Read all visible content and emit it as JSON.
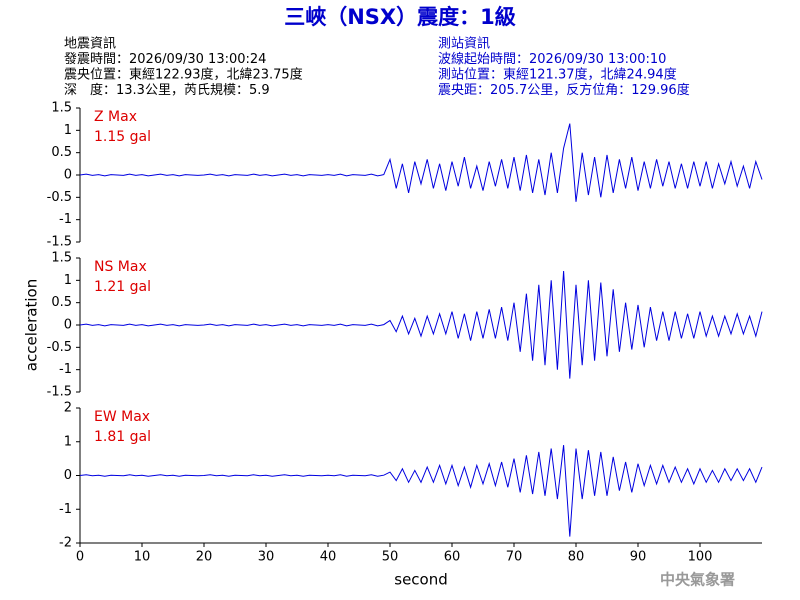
{
  "header": {
    "title": "三峽（NSX）震度：1級",
    "info_left": [
      "地震資訊",
      "發震時間：2026/09/30 13:00:24",
      "震央位置：東經122.93度，北緯23.75度",
      "深　度：13.3公里，芮氏規模：5.9"
    ],
    "info_right": [
      "測站資訊",
      "波線起始時間：2026/09/30 13:00:10",
      "測站位置：東經121.37度，北緯24.94度",
      "震央距：205.7公里，反方位角：129.96度"
    ],
    "footer": "中央氣象署"
  },
  "chart_data": [
    {
      "type": "line",
      "annotation": "Z Max",
      "max_label": "1.15 gal",
      "color": "#0000e0",
      "xlim": [
        0,
        110
      ],
      "ylim": [
        -1.5,
        1.5
      ],
      "yticks": [
        -1.5,
        -1,
        -0.5,
        0,
        0.5,
        1,
        1.5
      ],
      "x": [
        0,
        1,
        2,
        3,
        4,
        5,
        6,
        7,
        8,
        9,
        10,
        11,
        12,
        13,
        14,
        15,
        16,
        17,
        18,
        19,
        20,
        21,
        22,
        23,
        24,
        25,
        26,
        27,
        28,
        29,
        30,
        31,
        32,
        33,
        34,
        35,
        36,
        37,
        38,
        39,
        40,
        41,
        42,
        43,
        44,
        45,
        46,
        47,
        48,
        49,
        50,
        51,
        52,
        53,
        54,
        55,
        56,
        57,
        58,
        59,
        60,
        61,
        62,
        63,
        64,
        65,
        66,
        67,
        68,
        69,
        70,
        71,
        72,
        73,
        74,
        75,
        76,
        77,
        78,
        79,
        80,
        81,
        82,
        83,
        84,
        85,
        86,
        87,
        88,
        89,
        90,
        91,
        92,
        93,
        94,
        95,
        96,
        97,
        98,
        99,
        100,
        101,
        102,
        103,
        104,
        105,
        106,
        107,
        108,
        109,
        110
      ],
      "values": [
        0,
        0.02,
        -0.01,
        0.01,
        -0.02,
        0.01,
        0,
        -0.01,
        0.02,
        -0.01,
        0.01,
        -0.02,
        0,
        0.02,
        -0.01,
        0.01,
        -0.02,
        0.01,
        0,
        -0.01,
        0,
        0.02,
        -0.01,
        0.01,
        -0.02,
        0.01,
        0,
        -0.01,
        0.02,
        -0.01,
        0.01,
        -0.02,
        0,
        0.02,
        -0.01,
        0.01,
        -0.02,
        0.01,
        0,
        -0.01,
        0.01,
        -0.01,
        0.02,
        -0.02,
        0.01,
        0,
        -0.01,
        0.02,
        -0.02,
        0.01,
        0.35,
        -0.3,
        0.25,
        -0.4,
        0.3,
        -0.2,
        0.35,
        -0.3,
        0.25,
        -0.35,
        0.3,
        -0.25,
        0.4,
        -0.3,
        0.2,
        -0.35,
        0.3,
        -0.25,
        0.35,
        -0.3,
        0.4,
        -0.35,
        0.45,
        -0.4,
        0.35,
        -0.45,
        0.5,
        -0.4,
        0.6,
        1.15,
        -0.6,
        0.5,
        -0.45,
        0.4,
        -0.5,
        0.45,
        -0.4,
        0.35,
        -0.3,
        0.4,
        -0.35,
        0.3,
        -0.3,
        0.35,
        -0.25,
        0.3,
        -0.3,
        0.25,
        -0.3,
        0.3,
        -0.25,
        0.3,
        -0.3,
        0.25,
        -0.2,
        0.3,
        -0.25,
        0.2,
        -0.3,
        0.3,
        -0.1
      ]
    },
    {
      "type": "line",
      "annotation": "NS Max",
      "max_label": "1.21 gal",
      "ylabel": "acceleration",
      "color": "#0000e0",
      "xlim": [
        0,
        110
      ],
      "ylim": [
        -1.5,
        1.5
      ],
      "yticks": [
        -1.5,
        -1,
        -0.5,
        0,
        0.5,
        1,
        1.5
      ],
      "values": [
        0,
        0.02,
        -0.01,
        0.01,
        -0.02,
        0.01,
        0,
        -0.01,
        0.02,
        -0.01,
        0.01,
        -0.02,
        0,
        0.02,
        -0.01,
        0.01,
        -0.02,
        0.01,
        0,
        -0.01,
        0,
        0.02,
        -0.01,
        0.01,
        -0.02,
        0.01,
        0,
        -0.01,
        0.02,
        -0.01,
        0.01,
        -0.02,
        0,
        0.02,
        -0.01,
        0.01,
        -0.02,
        0.01,
        0,
        -0.01,
        0.01,
        -0.01,
        0.02,
        -0.02,
        0.01,
        0,
        -0.01,
        0.02,
        -0.02,
        0.01,
        0.1,
        -0.15,
        0.2,
        -0.2,
        0.15,
        -0.25,
        0.2,
        -0.2,
        0.25,
        -0.2,
        0.3,
        -0.3,
        0.25,
        -0.35,
        0.3,
        -0.3,
        0.35,
        -0.3,
        0.4,
        -0.35,
        0.5,
        -0.6,
        0.7,
        -0.8,
        0.9,
        -0.9,
        1.0,
        -1.0,
        1.21,
        -1.2,
        0.9,
        -0.9,
        1.0,
        -0.8,
        0.95,
        -0.7,
        0.8,
        -0.6,
        0.5,
        -0.55,
        0.45,
        -0.5,
        0.4,
        -0.35,
        0.3,
        -0.35,
        0.3,
        -0.3,
        0.25,
        -0.3,
        0.3,
        -0.25,
        0.2,
        -0.25,
        0.2,
        -0.2,
        0.25,
        -0.2,
        0.2,
        -0.25,
        0.3
      ]
    },
    {
      "type": "line",
      "annotation": "EW Max",
      "max_label": "1.81 gal",
      "xlabel": "second",
      "color": "#0000e0",
      "xlim": [
        0,
        110
      ],
      "ylim": [
        -2,
        2
      ],
      "yticks": [
        -2,
        -1,
        0,
        1,
        2
      ],
      "xticks": [
        0,
        10,
        20,
        30,
        40,
        50,
        60,
        70,
        80,
        90,
        100
      ],
      "values": [
        0,
        0.02,
        -0.01,
        0.01,
        -0.02,
        0.01,
        0,
        -0.01,
        0.02,
        -0.01,
        0.01,
        -0.02,
        0,
        0.02,
        -0.01,
        0.01,
        -0.02,
        0.01,
        0,
        -0.01,
        0,
        0.02,
        -0.01,
        0.01,
        -0.02,
        0.01,
        0,
        -0.01,
        0.02,
        -0.01,
        0.01,
        -0.02,
        0,
        0.02,
        -0.01,
        0.01,
        -0.02,
        0.01,
        0,
        -0.01,
        0.01,
        -0.01,
        0.02,
        -0.02,
        0.01,
        0,
        -0.01,
        0.02,
        -0.02,
        0.01,
        0.1,
        -0.15,
        0.2,
        -0.2,
        0.15,
        -0.2,
        0.25,
        -0.2,
        0.3,
        -0.25,
        0.3,
        -0.3,
        0.25,
        -0.35,
        0.3,
        -0.25,
        0.35,
        -0.3,
        0.4,
        -0.35,
        0.5,
        -0.5,
        0.6,
        -0.55,
        0.7,
        -0.6,
        0.8,
        -0.7,
        0.9,
        -1.81,
        0.8,
        -0.7,
        0.75,
        -0.6,
        0.7,
        -0.6,
        0.55,
        -0.45,
        0.4,
        -0.5,
        0.35,
        -0.3,
        0.3,
        -0.25,
        0.3,
        -0.2,
        0.25,
        -0.2,
        0.2,
        -0.25,
        0.2,
        -0.2,
        0.15,
        -0.2,
        0.2,
        -0.15,
        0.2,
        -0.15,
        0.2,
        -0.2,
        0.25
      ]
    }
  ]
}
